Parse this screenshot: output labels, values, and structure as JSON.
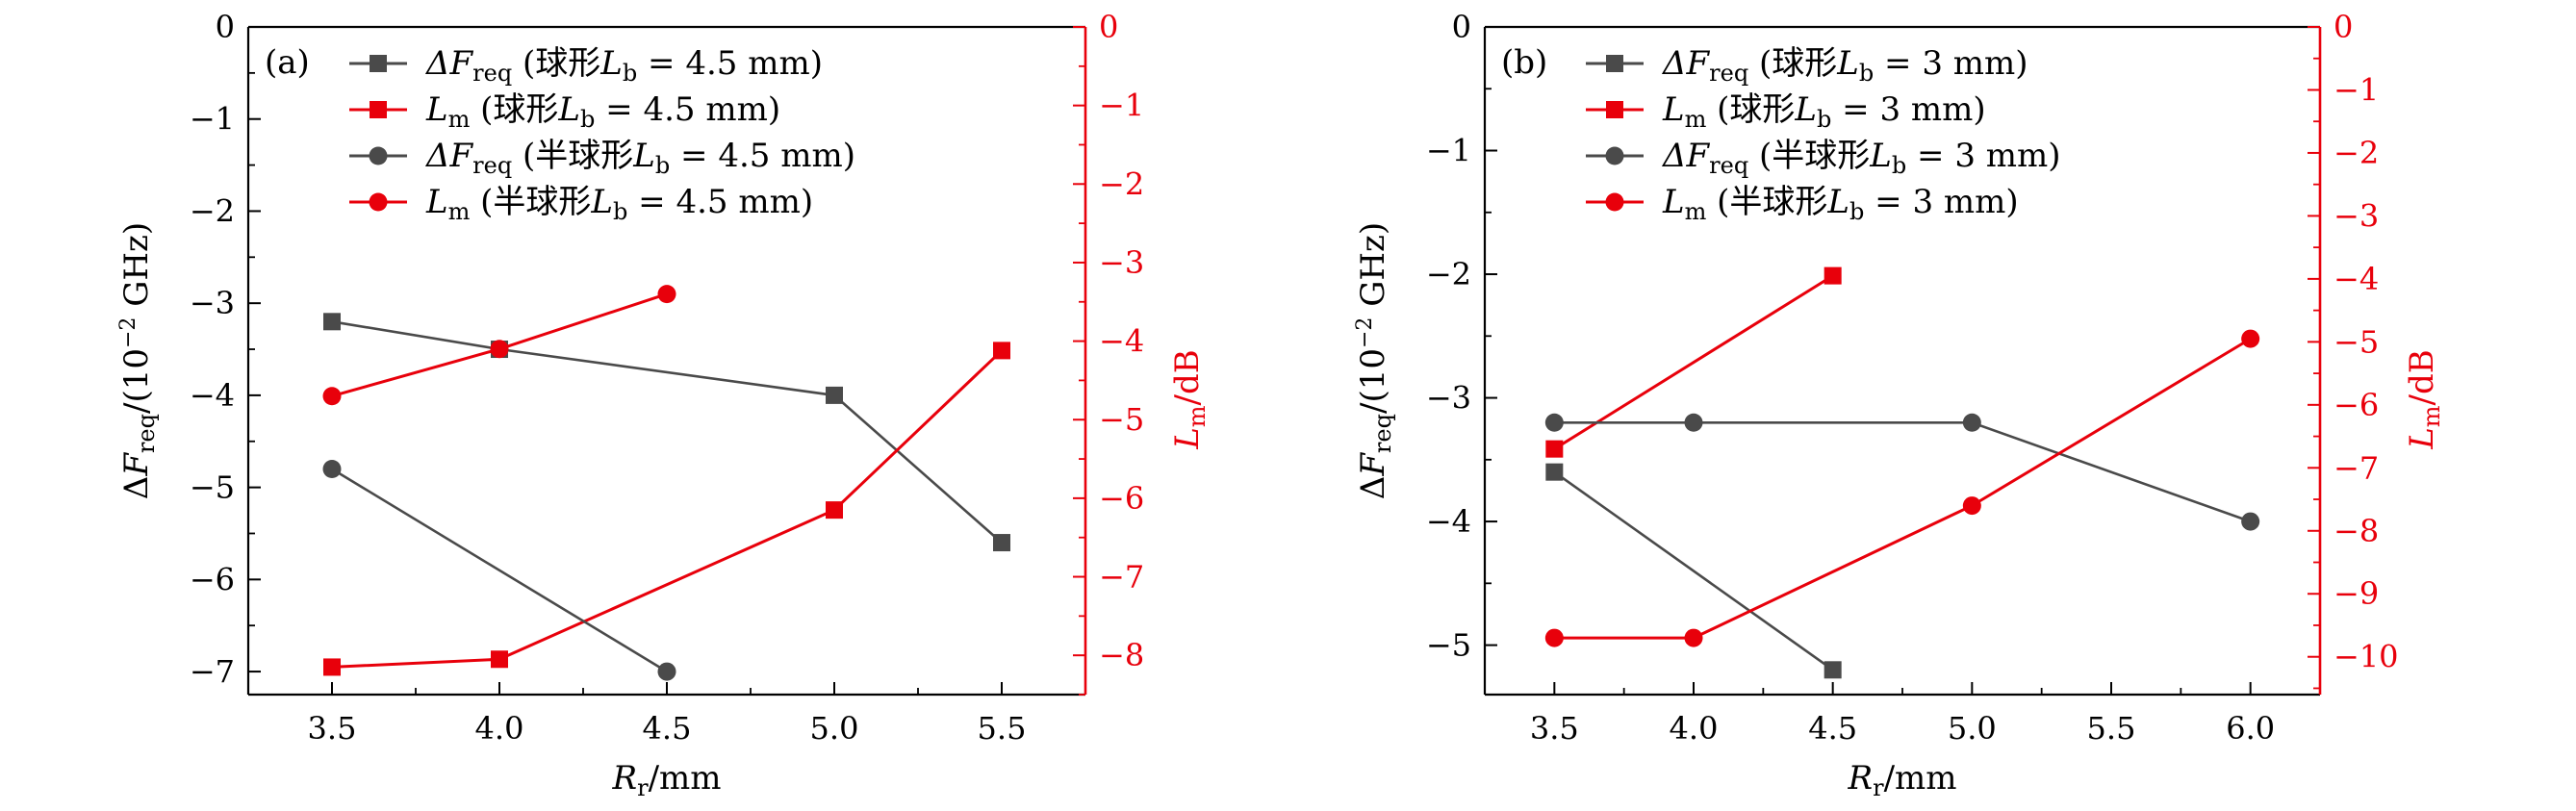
{
  "colors": {
    "left_axis": "#000000",
    "right_axis": "#e8000b",
    "gray_series": "#4a4a4a",
    "red_series": "#e8000b"
  },
  "panels": [
    {
      "tag": "(a)",
      "x_label": {
        "sym": "R",
        "sub": "r",
        "rest": "/mm"
      },
      "y_label": {
        "pre": "Δ",
        "sym": "F",
        "sub": "req",
        "rest": "/(10",
        "sup": "−2",
        "rest2": " GHz)"
      },
      "y2_label": {
        "sym": "L",
        "sub": "m",
        "rest": "/dB"
      },
      "legend": [
        {
          "sym": "ΔF",
          "sub": "req",
          "text": " (球形",
          "lsym": "L",
          "lsub": "b",
          "eq": " = 4.5 mm)"
        },
        {
          "sym": "L",
          "sub": "m",
          "text": " (球形",
          "lsym": "L",
          "lsub": "b",
          "eq": " = 4.5 mm)"
        },
        {
          "sym": "ΔF",
          "sub": "req",
          "text": " (半球形",
          "lsym": "L",
          "lsub": "b",
          "eq": " = 4.5 mm)"
        },
        {
          "sym": "L",
          "sub": "m",
          "text": " (半球形",
          "lsym": "L",
          "lsub": "b",
          "eq": " = 4.5 mm)"
        }
      ]
    },
    {
      "tag": "(b)",
      "x_label": {
        "sym": "R",
        "sub": "r",
        "rest": "/mm"
      },
      "y_label": {
        "pre": "Δ",
        "sym": "F",
        "sub": "req",
        "rest": "/(10",
        "sup": "−2",
        "rest2": " GHz)"
      },
      "y2_label": {
        "sym": "L",
        "sub": "m",
        "rest": "/dB"
      },
      "legend": [
        {
          "sym": "ΔF",
          "sub": "req",
          "text": " (球形",
          "lsym": "L",
          "lsub": "b",
          "eq": " = 3 mm)"
        },
        {
          "sym": "L",
          "sub": "m",
          "text": " (球形",
          "lsym": "L",
          "lsub": "b",
          "eq": " = 3 mm)"
        },
        {
          "sym": "ΔF",
          "sub": "req",
          "text": " (半球形",
          "lsym": "L",
          "lsub": "b",
          "eq": " = 3 mm)"
        },
        {
          "sym": "L",
          "sub": "m",
          "text": " (半球形",
          "lsym": "L",
          "lsub": "b",
          "eq": " = 3 mm)"
        }
      ]
    }
  ],
  "chart_data": [
    {
      "type": "line",
      "panel": "(a)",
      "xlabel": "Rr/mm",
      "ylabel": "ΔFreq/(10^-2 GHz)",
      "y2label": "Lm/dB",
      "xlim": [
        3.25,
        5.75
      ],
      "ylim": [
        -7.25,
        0
      ],
      "y2lim": [
        -8.5,
        0
      ],
      "xticks": [
        "3.5",
        "4.0",
        "4.5",
        "5.0",
        "5.5"
      ],
      "yticks": [
        "0",
        "−1",
        "−2",
        "−3",
        "−4",
        "−5",
        "−6",
        "−7"
      ],
      "y2ticks": [
        "0",
        "−1",
        "−2",
        "−3",
        "−4",
        "−5",
        "−6",
        "−7",
        "−8"
      ],
      "series": [
        {
          "name": "ΔFreq (球形Lb = 4.5 mm)",
          "axis": "left",
          "color": "#4a4a4a",
          "marker": "square",
          "x": [
            3.5,
            4.0,
            5.0,
            5.5
          ],
          "y": [
            -3.2,
            -3.5,
            -4.0,
            -5.6
          ]
        },
        {
          "name": "Lm (球形Lb = 4.5 mm)",
          "axis": "right",
          "color": "#e8000b",
          "marker": "square",
          "x": [
            3.5,
            4.0,
            5.0,
            5.5
          ],
          "y": [
            -8.15,
            -8.05,
            -6.15,
            -4.12
          ]
        },
        {
          "name": "ΔFreq (半球形Lb = 4.5 mm)",
          "axis": "left",
          "color": "#4a4a4a",
          "marker": "circle",
          "x": [
            3.5,
            4.5
          ],
          "y": [
            -4.8,
            -7.0
          ]
        },
        {
          "name": "Lm (半球形Lb = 4.5 mm)",
          "axis": "right",
          "color": "#e8000b",
          "marker": "circle",
          "x": [
            3.5,
            4.0,
            4.5
          ],
          "y": [
            -4.7,
            -4.1,
            -3.4
          ]
        }
      ]
    },
    {
      "type": "line",
      "panel": "(b)",
      "xlabel": "Rr/mm",
      "ylabel": "ΔFreq/(10^-2 GHz)",
      "y2label": "Lm/dB",
      "xlim": [
        3.25,
        6.25
      ],
      "ylim": [
        -5.4,
        0
      ],
      "y2lim": [
        -10.6,
        0
      ],
      "xticks": [
        "3.5",
        "4.0",
        "4.5",
        "5.0",
        "5.5",
        "6.0"
      ],
      "yticks": [
        "0",
        "−1",
        "−2",
        "−3",
        "−4",
        "−5"
      ],
      "y2ticks": [
        "0",
        "−1",
        "−2",
        "−3",
        "−4",
        "−5",
        "−6",
        "−7",
        "−8",
        "−9",
        "−10"
      ],
      "series": [
        {
          "name": "ΔFreq (球形Lb = 3 mm)",
          "axis": "left",
          "color": "#4a4a4a",
          "marker": "square",
          "x": [
            3.5,
            4.5
          ],
          "y": [
            -3.6,
            -5.2
          ]
        },
        {
          "name": "Lm (球形Lb = 3 mm)",
          "axis": "right",
          "color": "#e8000b",
          "marker": "square",
          "x": [
            3.5,
            4.5
          ],
          "y": [
            -6.7,
            -3.95
          ]
        },
        {
          "name": "ΔFreq (半球形Lb = 3 mm)",
          "axis": "left",
          "color": "#4a4a4a",
          "marker": "circle",
          "x": [
            3.5,
            4.0,
            5.0,
            6.0
          ],
          "y": [
            -3.2,
            -3.2,
            -3.2,
            -4.0
          ]
        },
        {
          "name": "Lm (半球形Lb = 3 mm)",
          "axis": "right",
          "color": "#e8000b",
          "marker": "circle",
          "x": [
            3.5,
            4.0,
            5.0,
            6.0
          ],
          "y": [
            -9.7,
            -9.7,
            -7.6,
            -4.95
          ]
        }
      ]
    }
  ]
}
